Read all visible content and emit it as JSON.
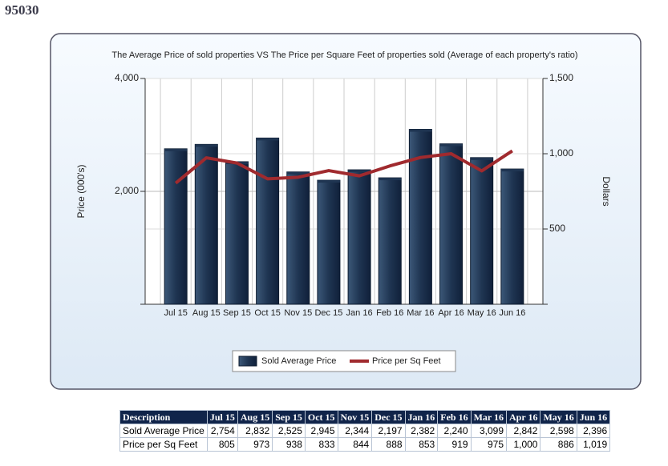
{
  "header": "95030",
  "chart_data": {
    "type": "bar-line",
    "title": "The Average Price of sold properties VS The Price per Square Feet of properties sold (Average of each property's ratio)",
    "y_label": "Price (000's)",
    "y2_label": "Dollars",
    "categories": [
      "Jul 15",
      "Aug 15",
      "Sep 15",
      "Oct 15",
      "Nov 15",
      "Dec 15",
      "Jan 16",
      "Feb 16",
      "Mar 16",
      "Apr 16",
      "May 16",
      "Jun 16"
    ],
    "series": [
      {
        "name": "Sold Average Price",
        "color": "#1f3552",
        "type": "bar",
        "values": [
          2754,
          2832,
          2525,
          2945,
          2344,
          2197,
          2382,
          2240,
          3099,
          2842,
          2598,
          2396
        ],
        "value_labels": [
          "2,754",
          "2,832",
          "2,525",
          "2,945",
          "2,344",
          "2,197",
          "2,382",
          "2,240",
          "3,099",
          "2,842",
          "2,598",
          "2,396"
        ]
      },
      {
        "name": "Price per Sq Feet",
        "color": "#a02a2e",
        "type": "line",
        "axis": "y2",
        "values": [
          805,
          973,
          938,
          833,
          844,
          888,
          853,
          919,
          975,
          1000,
          886,
          1019
        ],
        "value_labels": [
          "805",
          "973",
          "938",
          "833",
          "844",
          "888",
          "853",
          "919",
          "975",
          "1,000",
          "886",
          "1,019"
        ]
      }
    ],
    "ylim": [
      0,
      4000
    ],
    "yticks": [
      {
        "value": 2000,
        "label": "2,000"
      },
      {
        "value": 4000,
        "label": "4,000"
      }
    ],
    "y2lim": [
      0,
      1500
    ],
    "y2ticks": [
      {
        "value": 500,
        "label": "500"
      },
      {
        "value": 1000,
        "label": "1,000"
      },
      {
        "value": 1500,
        "label": "1,500"
      }
    ],
    "grid": true
  },
  "table": {
    "header": "Description"
  }
}
